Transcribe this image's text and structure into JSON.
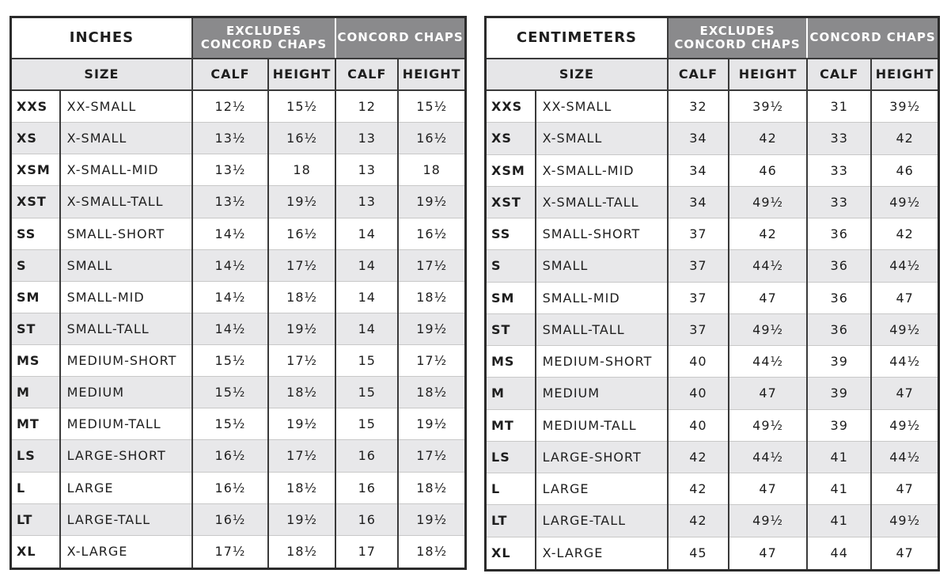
{
  "tables": [
    {
      "title": "INCHES",
      "group_headers": [
        "EXCLUDES\nCONCORD CHAPS",
        "CONCORD CHAPS"
      ],
      "sub_headers": [
        "SIZE",
        "CALF",
        "HEIGHT",
        "CALF",
        "HEIGHT"
      ],
      "rows": [
        [
          "XXS",
          "XX-SMALL",
          "12½",
          "15½",
          "12",
          "15½"
        ],
        [
          "XS",
          "X-SMALL",
          "13½",
          "16½",
          "13",
          "16½"
        ],
        [
          "XSM",
          "X-SMALL-MID",
          "13½",
          "18",
          "13",
          "18"
        ],
        [
          "XST",
          "X-SMALL-TALL",
          "13½",
          "19½",
          "13",
          "19½"
        ],
        [
          "SS",
          "SMALL-SHORT",
          "14½",
          "16½",
          "14",
          "16½"
        ],
        [
          "S",
          "SMALL",
          "14½",
          "17½",
          "14",
          "17½"
        ],
        [
          "SM",
          "SMALL-MID",
          "14½",
          "18½",
          "14",
          "18½"
        ],
        [
          "ST",
          "SMALL-TALL",
          "14½",
          "19½",
          "14",
          "19½"
        ],
        [
          "MS",
          "MEDIUM-SHORT",
          "15½",
          "17½",
          "15",
          "17½"
        ],
        [
          "M",
          "MEDIUM",
          "15½",
          "18½",
          "15",
          "18½"
        ],
        [
          "MT",
          "MEDIUM-TALL",
          "15½",
          "19½",
          "15",
          "19½"
        ],
        [
          "LS",
          "LARGE-SHORT",
          "16½",
          "17½",
          "16",
          "17½"
        ],
        [
          "L",
          "LARGE",
          "16½",
          "18½",
          "16",
          "18½"
        ],
        [
          "LT",
          "LARGE-TALL",
          "16½",
          "19½",
          "16",
          "19½"
        ],
        [
          "XL",
          "X-LARGE",
          "17½",
          "18½",
          "17",
          "18½"
        ]
      ]
    },
    {
      "title": "CENTIMETERS",
      "group_headers": [
        "EXCLUDES\nCONCORD CHAPS",
        "CONCORD CHAPS"
      ],
      "sub_headers": [
        "SIZE",
        "CALF",
        "HEIGHT",
        "CALF",
        "HEIGHT"
      ],
      "rows": [
        [
          "XXS",
          "XX-SMALL",
          "32",
          "39½",
          "31",
          "39½"
        ],
        [
          "XS",
          "X-SMALL",
          "34",
          "42",
          "33",
          "42"
        ],
        [
          "XSM",
          "X-SMALL-MID",
          "34",
          "46",
          "33",
          "46"
        ],
        [
          "XST",
          "X-SMALL-TALL",
          "34",
          "49½",
          "33",
          "49½"
        ],
        [
          "SS",
          "SMALL-SHORT",
          "37",
          "42",
          "36",
          "42"
        ],
        [
          "S",
          "SMALL",
          "37",
          "44½",
          "36",
          "44½"
        ],
        [
          "SM",
          "SMALL-MID",
          "37",
          "47",
          "36",
          "47"
        ],
        [
          "ST",
          "SMALL-TALL",
          "37",
          "49½",
          "36",
          "49½"
        ],
        [
          "MS",
          "MEDIUM-SHORT",
          "40",
          "44½",
          "39",
          "44½"
        ],
        [
          "M",
          "MEDIUM",
          "40",
          "47",
          "39",
          "47"
        ],
        [
          "MT",
          "MEDIUM-TALL",
          "40",
          "49½",
          "39",
          "49½"
        ],
        [
          "LS",
          "LARGE-SHORT",
          "42",
          "44½",
          "41",
          "44½"
        ],
        [
          "L",
          "LARGE",
          "42",
          "47",
          "41",
          "47"
        ],
        [
          "LT",
          "LARGE-TALL",
          "42",
          "49½",
          "41",
          "49½"
        ],
        [
          "XL",
          "X-LARGE",
          "45",
          "47",
          "44",
          "47"
        ]
      ]
    }
  ]
}
